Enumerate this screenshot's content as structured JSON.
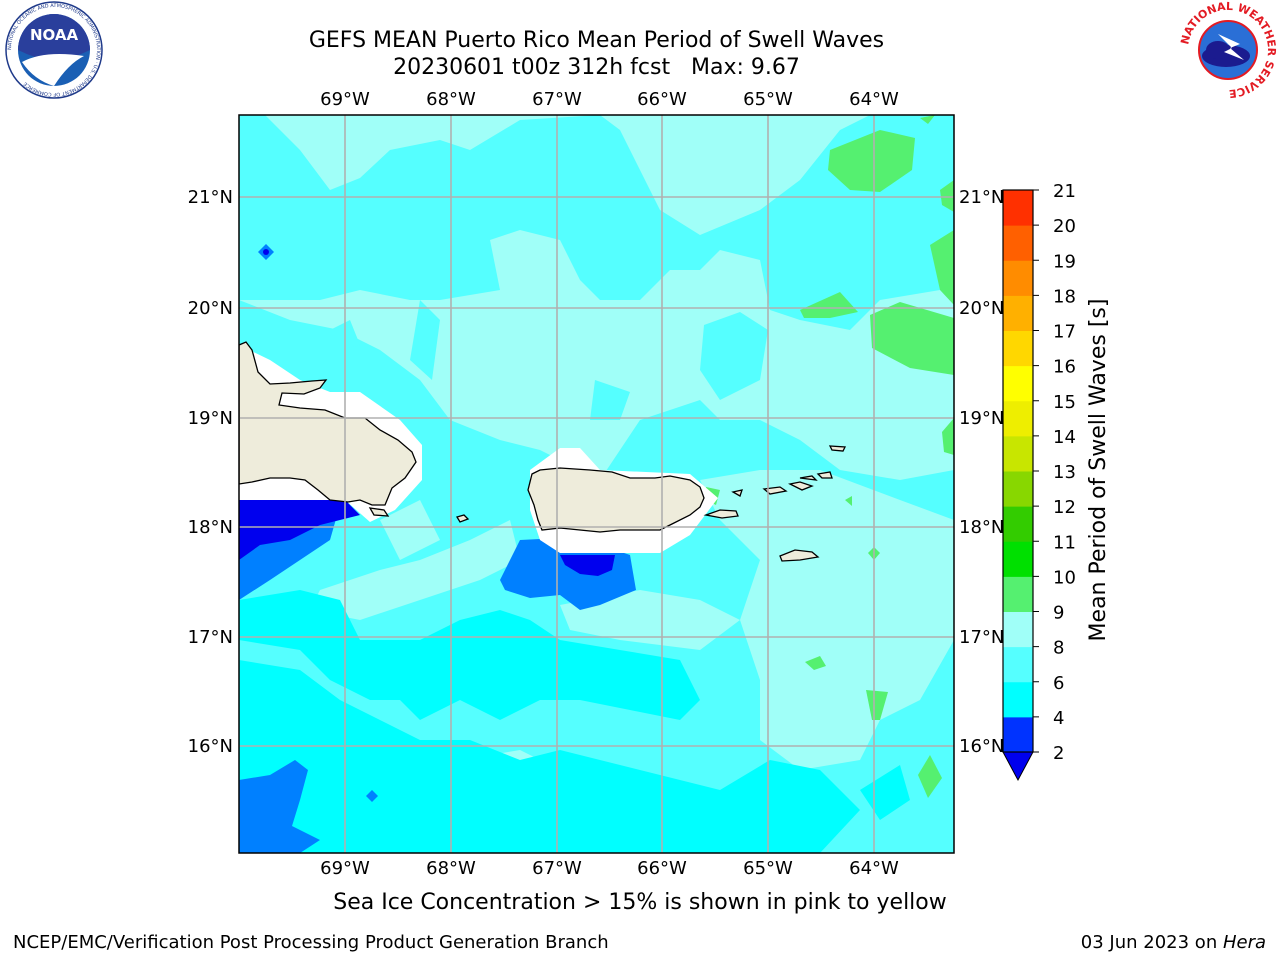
{
  "header": {
    "title_line1": "GEFS MEAN Puerto Rico Mean Period of Swell Waves",
    "title_line2": "20230601 t00z 312h fcst   Max: 9.67"
  },
  "logos": {
    "left": "NOAA",
    "left_ring_text": "NATIONAL OCEANIC AND ATMOSPHERIC ADMINISTRATION · U.S. DEPARTMENT OF COMMERCE",
    "right": "NATIONAL WEATHER SERVICE"
  },
  "map": {
    "lon_range": [
      -70,
      -63.25
    ],
    "lat_range": [
      15,
      21.75
    ],
    "lon_ticks": [
      "69°W",
      "68°W",
      "67°W",
      "66°W",
      "65°W",
      "64°W"
    ],
    "lat_ticks": [
      "16°N",
      "17°N",
      "18°N",
      "19°N",
      "20°N",
      "21°N"
    ],
    "grid": true,
    "land_color": "#eeecdb",
    "ocean_dominant_class": "6-8 / 8-9"
  },
  "colorbar": {
    "label": "Mean Period of Swell Waves [s]",
    "ticks": [
      "2",
      "4",
      "6",
      "8",
      "9",
      "10",
      "11",
      "12",
      "13",
      "14",
      "15",
      "16",
      "17",
      "18",
      "19",
      "20",
      "21"
    ],
    "colors": [
      "#0033ff",
      "#00ffff",
      "#55ffff",
      "#a0fff8",
      "#55f070",
      "#00e000",
      "#33cc00",
      "#88d700",
      "#c8e600",
      "#eeee00",
      "#ffff00",
      "#ffd700",
      "#ffb000",
      "#ff8c00",
      "#ff6000",
      "#ff3000",
      "#ff0000"
    ],
    "under_color": "#0000ee",
    "extend": "min"
  },
  "footer": {
    "caption": "Sea Ice Concentration > 15% is shown in pink to yellow",
    "left": "NCEP/EMC/Verification Post Processing Product Generation Branch",
    "right_date": "03 Jun 2023 on ",
    "right_host": "Hera"
  }
}
